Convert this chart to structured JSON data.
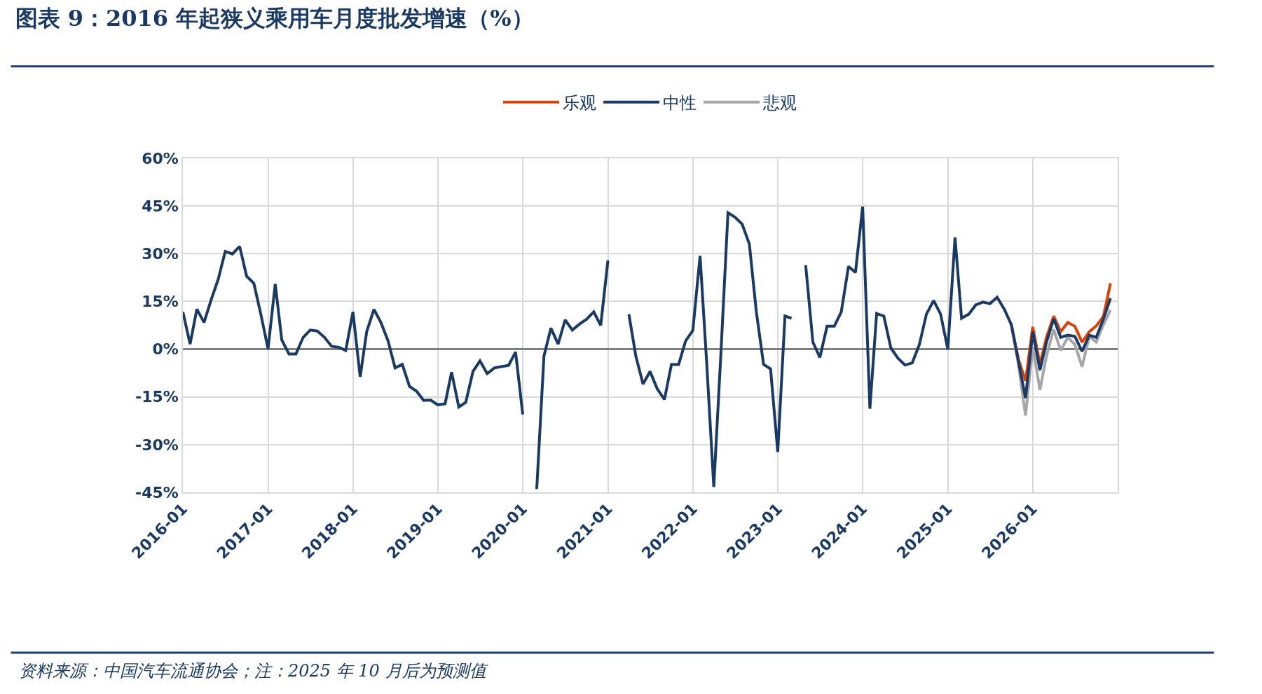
{
  "chart_data": {
    "type": "line",
    "title": "图表 9：2016 年起狭义乘用车月度批发增速（%）",
    "annotations": [
      "资料来源：中国汽车流通协会；注：2025 年 10 月后为预测值"
    ],
    "series": [
      {
        "name": "乐观",
        "color": "#d5460f",
        "x": [
          "2025-10",
          "2025-11",
          "2025-12",
          "2026-01",
          "2026-02",
          "2026-03",
          "2026-04",
          "2026-05",
          "2026-06",
          "2026-07",
          "2026-08",
          "2026-09",
          "2026-10",
          "2026-11",
          "2026-12"
        ],
        "values": [
          7.7,
          -3.3,
          -10,
          7.0,
          -4.8,
          3.7,
          10.4,
          5.5,
          8.4,
          7.2,
          2.2,
          5.5,
          7.3,
          10.3,
          20.7
        ]
      },
      {
        "name": "中性",
        "color": "#1a3a63",
        "values": [
          11.7,
          1.6,
          12.6,
          8.4,
          15.4,
          22.0,
          30.7,
          29.9,
          32.3,
          22.9,
          20.7,
          11.0,
          0.1,
          20.5,
          2.9,
          -1.5,
          -1.5,
          3.7,
          6.0,
          5.7,
          3.7,
          0.9,
          0.6,
          -0.4,
          11.7,
          -8.7,
          5.5,
          12.5,
          8.4,
          2.6,
          -5.9,
          -4.8,
          -11.7,
          -13.2,
          -16.1,
          -16.0,
          -17.5,
          -17.2,
          -7.2,
          -18.2,
          -16.7,
          -7.0,
          -3.7,
          -7.7,
          -5.9,
          -5.5,
          -5.1,
          -0.9,
          -20.5,
          null,
          -44,
          -2.2,
          6.6,
          1.6,
          9.2,
          6.0,
          7.9,
          9.4,
          11.7,
          7.5,
          27.9,
          null,
          null,
          11.0,
          -2.2,
          -11.0,
          -7.0,
          -12.5,
          -15.8,
          -4.8,
          -4.8,
          2.6,
          5.9,
          29.3,
          -3.7,
          -43.3,
          -2.2,
          42.9,
          41.5,
          39.3,
          33.0,
          11.7,
          -4.8,
          -6.2,
          -32.3,
          10.4,
          9.7,
          null,
          26.4,
          2.2,
          -2.6,
          7.2,
          7.2,
          11.7,
          26.0,
          24.1,
          44.8,
          -18.7,
          11.2,
          10.4,
          0.4,
          -2.9,
          -5.0,
          -4.3,
          1.5,
          11.0,
          15.3,
          11.0,
          0.0,
          35.1,
          9.7,
          11.0,
          13.9,
          14.8,
          14.3,
          16.3,
          12.5,
          7.7,
          -4.0,
          -15.4,
          5.5,
          -6.6,
          2.2,
          9.5,
          3.7,
          4.4,
          4.0,
          -0.7,
          4.4,
          3.7,
          9.5,
          16.0
        ]
      },
      {
        "name": "悲观",
        "color": "#a6a6a6",
        "x": [
          "2025-10",
          "2025-11",
          "2025-12",
          "2026-01",
          "2026-02",
          "2026-03",
          "2026-04",
          "2026-05",
          "2026-06",
          "2026-07",
          "2026-08",
          "2026-09",
          "2026-10",
          "2026-11",
          "2026-12"
        ],
        "values": [
          7.7,
          -5.1,
          -20.9,
          0.7,
          -12.8,
          -2.2,
          6.2,
          -0.4,
          3.7,
          1.5,
          -5.5,
          4.0,
          2.2,
          7.7,
          12.3
        ]
      }
    ],
    "x": [
      "2016-01",
      "2016-02",
      "2016-03",
      "2016-04",
      "2016-05",
      "2016-06",
      "2016-07",
      "2016-08",
      "2016-09",
      "2016-10",
      "2016-11",
      "2016-12",
      "2017-01",
      "2017-02",
      "2017-03",
      "2017-04",
      "2017-05",
      "2017-06",
      "2017-07",
      "2017-08",
      "2017-09",
      "2017-10",
      "2017-11",
      "2017-12",
      "2018-01",
      "2018-02",
      "2018-03",
      "2018-04",
      "2018-05",
      "2018-06",
      "2018-07",
      "2018-08",
      "2018-09",
      "2018-10",
      "2018-11",
      "2018-12",
      "2019-01",
      "2019-02",
      "2019-03",
      "2019-04",
      "2019-05",
      "2019-06",
      "2019-07",
      "2019-08",
      "2019-09",
      "2019-10",
      "2019-11",
      "2019-12",
      "2020-01",
      "2020-02",
      "2020-03",
      "2020-04",
      "2020-05",
      "2020-06",
      "2020-07",
      "2020-08",
      "2020-09",
      "2020-10",
      "2020-11",
      "2020-12",
      "2021-01",
      "2021-02",
      "2021-03",
      "2021-04",
      "2021-05",
      "2021-06",
      "2021-07",
      "2021-08",
      "2021-09",
      "2021-10",
      "2021-11",
      "2021-12",
      "2022-01",
      "2022-02",
      "2022-03",
      "2022-04",
      "2022-05",
      "2022-06",
      "2022-07",
      "2022-08",
      "2022-09",
      "2022-10",
      "2022-11",
      "2022-12",
      "2023-01",
      "2023-02",
      "2023-03",
      "2023-04",
      "2023-05",
      "2023-06",
      "2023-07",
      "2023-08",
      "2023-09",
      "2023-10",
      "2023-11",
      "2023-12",
      "2024-01",
      "2024-02",
      "2024-03",
      "2024-04",
      "2024-05",
      "2024-06",
      "2024-07",
      "2024-08",
      "2024-09",
      "2024-10",
      "2024-11",
      "2024-12",
      "2025-01",
      "2025-02",
      "2025-03",
      "2025-04",
      "2025-05",
      "2025-06",
      "2025-07",
      "2025-08",
      "2025-09",
      "2025-10",
      "2025-11",
      "2025-12",
      "2026-01",
      "2026-02",
      "2026-03",
      "2026-04",
      "2026-05",
      "2026-06",
      "2026-07",
      "2026-08",
      "2026-09",
      "2026-10",
      "2026-11",
      "2026-12"
    ],
    "xlim": [
      "2016-01",
      "2027-01"
    ],
    "xticks": [
      "2016-01",
      "2017-01",
      "2018-01",
      "2019-01",
      "2020-01",
      "2021-01",
      "2022-01",
      "2023-01",
      "2024-01",
      "2025-01",
      "2026-01"
    ],
    "ylim": [
      -45,
      60
    ],
    "yticks": [
      {
        "value": -45,
        "label": "-45%"
      },
      {
        "value": -30,
        "label": "-30%"
      },
      {
        "value": -15,
        "label": "-15%"
      },
      {
        "value": 0,
        "label": "0%"
      },
      {
        "value": 15,
        "label": "15%"
      },
      {
        "value": 30,
        "label": "30%"
      },
      {
        "value": 45,
        "label": "45%"
      },
      {
        "value": 60,
        "label": "60%"
      }
    ],
    "grid": true,
    "legend": "top",
    "line_style": "solid",
    "marker": "none"
  }
}
